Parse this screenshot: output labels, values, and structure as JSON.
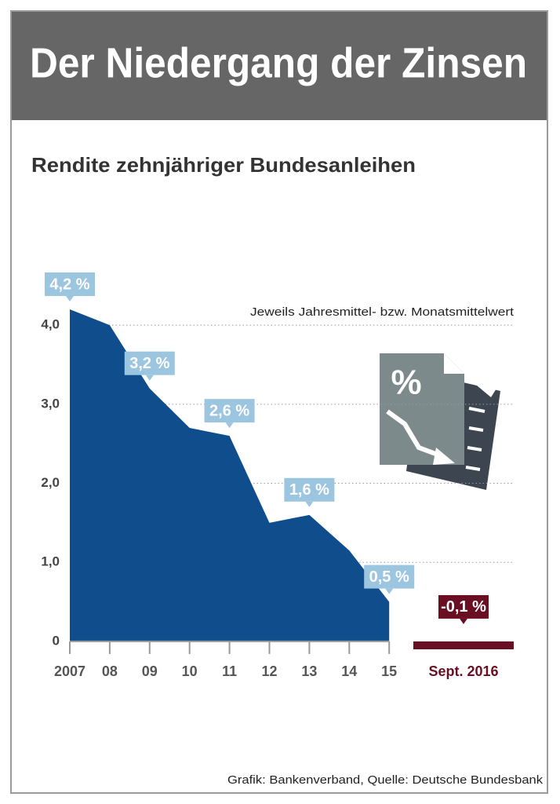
{
  "header": {
    "title": "Der Niedergang der Zinsen"
  },
  "chart_data": {
    "type": "area",
    "title": "Rendite zehnjähriger Bundesanleihen",
    "annotation": "Jeweils Jahresmittel- bzw. Monatsmittelwert",
    "categories": [
      "2007",
      "08",
      "09",
      "10",
      "11",
      "12",
      "13",
      "14",
      "15"
    ],
    "values": [
      4.2,
      4.0,
      3.2,
      2.7,
      2.6,
      1.5,
      1.6,
      1.15,
      0.5
    ],
    "value_labels": [
      "4,2 %",
      null,
      "3,2 %",
      null,
      "2,6 %",
      null,
      "1,6 %",
      null,
      "0,5 %"
    ],
    "color": "#0f4d8c",
    "label_color": "#9cc5df",
    "highlight": {
      "category": "Sept. 2016",
      "value": -0.1,
      "value_label": "-0,1 %",
      "color": "#6a0f23"
    },
    "ylim": [
      -0.1,
      4.2
    ],
    "yticks": [
      0,
      {
        "value": 1,
        "label": "1,0"
      },
      {
        "value": 2,
        "label": "2,0"
      },
      {
        "value": 3,
        "label": "3,0"
      },
      {
        "value": 4,
        "label": "4,0"
      }
    ],
    "grid": true
  },
  "footer": {
    "source": "Grafik: Bankenverband, Quelle: Deutsche Bundesbank"
  }
}
